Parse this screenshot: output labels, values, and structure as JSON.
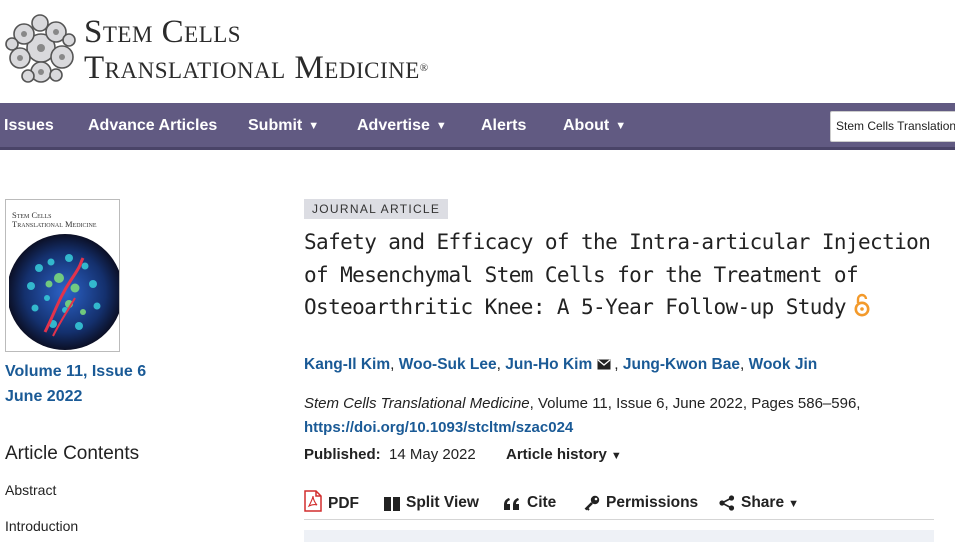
{
  "header": {
    "logo_line1": "Stem Cells",
    "logo_line2": "Translational Medicine",
    "logo_tm": "®"
  },
  "nav": {
    "items": [
      {
        "label": "Issues",
        "dropdown": false
      },
      {
        "label": "Advance Articles",
        "dropdown": false
      },
      {
        "label": "Submit",
        "dropdown": true
      },
      {
        "label": "Advertise",
        "dropdown": true
      },
      {
        "label": "Alerts",
        "dropdown": false
      },
      {
        "label": "About",
        "dropdown": true
      }
    ],
    "caret": "▼",
    "search_value": "Stem Cells Translational Medicine"
  },
  "sidebar": {
    "cover_title_line1": "Stem Cells",
    "cover_title_line2": "Translational Medicine",
    "volume_issue": "Volume 11, Issue 6",
    "issue_date": "June 2022",
    "contents_heading": "Article Contents",
    "toc": [
      "Abstract",
      "Introduction"
    ]
  },
  "article": {
    "type_badge": "JOURNAL ARTICLE",
    "title": "Safety and Efficacy of the Intra-articular Injection of Mesenchymal Stem Cells for the Treatment of Osteoarthritic Knee: A 5-Year Follow-up Study",
    "authors": [
      "Kang-Il Kim",
      "Woo-Suk Lee",
      "Jun-Ho Kim",
      "Jung-Kwon Bae",
      "Wook Jin"
    ],
    "corresponding_author_index": 2,
    "journal_name": "Stem Cells Translational Medicine",
    "citation_rest": ", Volume 11, Issue 6, June 2022, Pages 586–596,",
    "doi": "https://doi.org/10.1093/stcltm/szac024",
    "published_label": "Published:",
    "published_date": "14 May 2022",
    "history_label": "Article history",
    "history_caret": "▼"
  },
  "toolbar": {
    "pdf": "PDF",
    "split_view": "Split View",
    "cite": "Cite",
    "permissions": "Permissions",
    "share": "Share",
    "share_caret": "▼"
  },
  "colors": {
    "nav_bg": "#615a82",
    "link": "#1a5a96",
    "open_access": "#f39a2b",
    "pdf_red": "#d22d2d"
  }
}
